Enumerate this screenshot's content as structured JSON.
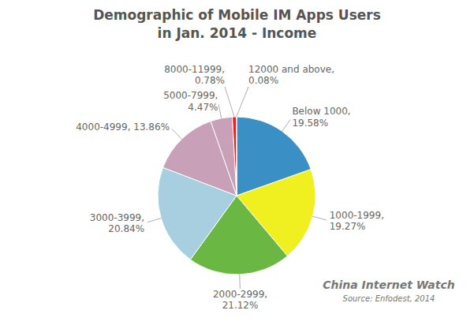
{
  "chart_data": {
    "type": "pie",
    "title": "Demographic of Mobile IM Apps Users\nin Jan. 2014 - Income",
    "categories": [
      "Below 1000,\n19.58%",
      "1000-1999,\n19.27%",
      "2000-2999,\n21.12%",
      "3000-3999,\n20.84%",
      "4000-4999, 13.86%",
      "5000-7999,\n4.47%",
      "8000-11999,\n0.78%",
      "12000 and above,\n0.08%"
    ],
    "values": [
      19.58,
      19.27,
      21.12,
      20.84,
      13.86,
      4.47,
      0.78,
      0.08
    ],
    "colors": [
      "#3a8fc4",
      "#f0f020",
      "#6ab843",
      "#a8cfe0",
      "#c8a0b8",
      "#c8a0b8",
      "#e82020",
      "#1a5e8a"
    ],
    "annotations": [
      "China Internet Watch",
      "Source: Enfodest, 2014"
    ]
  }
}
